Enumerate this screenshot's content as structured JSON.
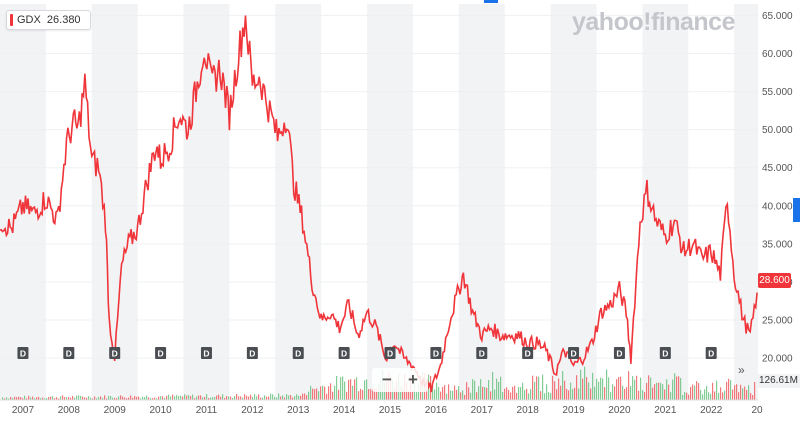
{
  "legend": {
    "ticker": "GDX",
    "value": "26.380"
  },
  "watermark": {
    "text": "yahoo!finance"
  },
  "last_price_label": "28.600",
  "volume_label": "126.61M",
  "controls": {
    "zoom_out": "−",
    "zoom_in": "+",
    "fast_forward": "»"
  },
  "colors": {
    "line": "#f0353a",
    "band": "#f2f3f5",
    "vol_up": "#62c07a",
    "vol_down": "#f0565a",
    "axis_text": "#555555"
  },
  "chart_data": {
    "type": "line",
    "series": [
      {
        "name": "GDX",
        "x": [
          2006.5,
          2006.75,
          2007.0,
          2007.25,
          2007.5,
          2007.75,
          2007.95,
          2008.1,
          2008.2,
          2008.35,
          2008.5,
          2008.65,
          2008.8,
          2008.88,
          2009.0,
          2009.15,
          2009.3,
          2009.5,
          2009.7,
          2009.9,
          2010.0,
          2010.2,
          2010.4,
          2010.6,
          2010.8,
          2010.95,
          2011.1,
          2011.3,
          2011.5,
          2011.7,
          2011.85,
          2012.0,
          2012.15,
          2012.35,
          2012.55,
          2012.75,
          2012.9,
          2013.1,
          2013.3,
          2013.5,
          2013.7,
          2013.9,
          2014.1,
          2014.3,
          2014.5,
          2014.7,
          2014.9,
          2015.1,
          2015.3,
          2015.5,
          2015.7,
          2015.9,
          2016.1,
          2016.3,
          2016.5,
          2016.6,
          2016.8,
          2017.0,
          2017.2,
          2017.4,
          2017.6,
          2017.8,
          2018.0,
          2018.2,
          2018.4,
          2018.6,
          2018.8,
          2019.0,
          2019.2,
          2019.4,
          2019.6,
          2019.8,
          2020.0,
          2020.15,
          2020.25,
          2020.45,
          2020.6,
          2020.8,
          2021.0,
          2021.2,
          2021.4,
          2021.6,
          2021.8,
          2022.0,
          2022.2,
          2022.35,
          2022.5,
          2022.7,
          2022.85,
          2023.0
        ],
        "y": [
          38,
          37,
          40,
          39,
          41,
          38,
          48,
          51,
          50,
          56,
          46,
          45,
          38,
          25,
          20,
          32,
          35,
          37,
          43,
          48,
          46,
          48,
          52,
          50,
          56,
          61,
          56,
          58,
          52,
          60,
          65,
          56,
          57,
          53,
          49,
          52,
          43,
          38,
          30,
          25,
          26,
          24,
          27,
          23,
          26,
          24,
          20,
          22,
          20,
          19,
          17,
          16,
          19,
          25,
          29,
          31,
          26,
          23,
          24,
          23,
          23,
          23,
          22,
          22,
          21,
          18,
          21,
          19,
          20,
          22,
          26,
          27,
          29,
          26,
          20,
          38,
          42,
          38,
          36,
          38,
          34,
          35,
          33,
          34,
          31,
          41,
          31,
          25,
          23,
          28.6
        ]
      }
    ],
    "x_ticks": [
      "2007",
      "2008",
      "2009",
      "2010",
      "2011",
      "2012",
      "2013",
      "2014",
      "2015",
      "2016",
      "2017",
      "2018",
      "2019",
      "2020",
      "2021",
      "2022",
      "20"
    ],
    "y_ticks": [
      "20.000",
      "25.000",
      "30.000",
      "35.000",
      "40.000",
      "45.000",
      "50.000",
      "55.000",
      "60.000",
      "65.000"
    ],
    "xlim": [
      2006.5,
      2023.02
    ],
    "ylim": [
      14.5,
      66.5
    ],
    "dividend_markers": [
      2007.0,
      2008.0,
      2009.0,
      2010.0,
      2011.0,
      2012.0,
      2013.0,
      2014.0,
      2015.0,
      2016.0,
      2017.0,
      2018.0,
      2019.0,
      2020.0,
      2021.0,
      2022.0
    ],
    "dividend_label": "D",
    "grid": "alternating-year-bands",
    "legend_position": "top-left"
  }
}
